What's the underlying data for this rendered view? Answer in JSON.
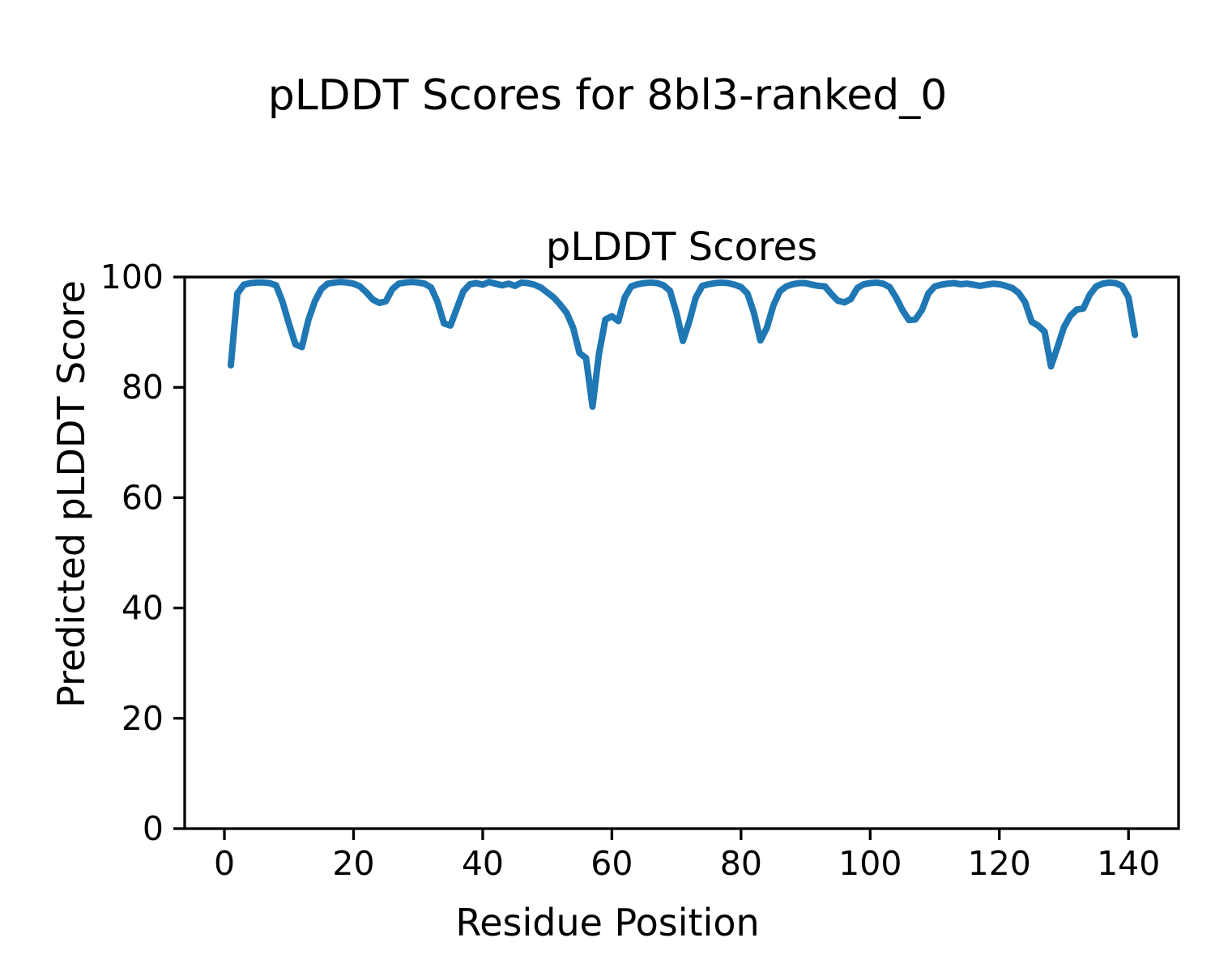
{
  "figure": {
    "title": "pLDDT Scores for 8bl3-ranked_0"
  },
  "chart_data": {
    "type": "line",
    "title": "pLDDT Scores",
    "xlabel": "Residue Position",
    "ylabel": "Predicted pLDDT Score",
    "series_name": "pLDDT",
    "line_color": "#1f77b4",
    "axis_color": "#000000",
    "grid": false,
    "legend": null,
    "xlim": [
      -6.15,
      147.75
    ],
    "ylim": [
      0,
      100
    ],
    "xticks": [
      0,
      20,
      40,
      60,
      80,
      100,
      120,
      140
    ],
    "yticks": [
      0,
      20,
      40,
      60,
      80,
      100
    ],
    "x": [
      1,
      2,
      3,
      4,
      5,
      6,
      7,
      8,
      9,
      10,
      11,
      12,
      13,
      14,
      15,
      16,
      17,
      18,
      19,
      20,
      21,
      22,
      23,
      24,
      25,
      26,
      27,
      28,
      29,
      30,
      31,
      32,
      33,
      34,
      35,
      36,
      37,
      38,
      39,
      40,
      41,
      42,
      43,
      44,
      45,
      46,
      47,
      48,
      49,
      50,
      51,
      52,
      53,
      54,
      55,
      56,
      57,
      58,
      59,
      60,
      61,
      62,
      63,
      64,
      65,
      66,
      67,
      68,
      69,
      70,
      71,
      72,
      73,
      74,
      75,
      76,
      77,
      78,
      79,
      80,
      81,
      82,
      83,
      84,
      85,
      86,
      87,
      88,
      89,
      90,
      91,
      92,
      93,
      94,
      95,
      96,
      97,
      98,
      99,
      100,
      101,
      102,
      103,
      104,
      105,
      106,
      107,
      108,
      109,
      110,
      111,
      112,
      113,
      114,
      115,
      116,
      117,
      118,
      119,
      120,
      121,
      122,
      123,
      124,
      125,
      126,
      127,
      128,
      129,
      130,
      131,
      132,
      133,
      134,
      135,
      136,
      137,
      138,
      139,
      140,
      141
    ],
    "y": [
      84.0,
      97.0,
      98.6,
      98.9,
      99.0,
      99.0,
      98.9,
      98.5,
      95.5,
      91.5,
      87.8,
      87.3,
      92.2,
      95.6,
      97.8,
      98.8,
      99.0,
      99.1,
      99.0,
      98.8,
      98.3,
      97.2,
      95.9,
      95.3,
      95.6,
      97.8,
      98.8,
      99.0,
      99.1,
      99.0,
      98.8,
      98.1,
      95.5,
      91.6,
      91.2,
      94.3,
      97.4,
      98.7,
      98.9,
      98.6,
      99.1,
      98.8,
      98.5,
      98.8,
      98.4,
      99.0,
      98.9,
      98.6,
      98.1,
      97.2,
      96.3,
      95.0,
      93.5,
      90.8,
      86.2,
      85.3,
      76.5,
      86.0,
      92.3,
      92.9,
      92.0,
      96.3,
      98.3,
      98.7,
      98.9,
      99.0,
      98.9,
      98.5,
      97.5,
      93.5,
      88.4,
      92.0,
      96.3,
      98.4,
      98.7,
      98.9,
      99.0,
      98.9,
      98.6,
      98.2,
      97.0,
      93.5,
      88.5,
      90.8,
      94.8,
      97.4,
      98.3,
      98.7,
      98.9,
      98.9,
      98.6,
      98.4,
      98.3,
      96.9,
      95.7,
      95.4,
      96.0,
      98.0,
      98.7,
      98.9,
      99.0,
      98.8,
      98.2,
      96.3,
      94.0,
      92.2,
      92.3,
      94.0,
      97.0,
      98.3,
      98.6,
      98.8,
      98.9,
      98.7,
      98.8,
      98.6,
      98.4,
      98.6,
      98.8,
      98.7,
      98.4,
      98.0,
      97.1,
      95.4,
      91.9,
      91.2,
      90.1,
      83.8,
      87.3,
      90.9,
      93.0,
      94.1,
      94.3,
      96.8,
      98.3,
      98.8,
      99.0,
      98.9,
      98.4,
      96.3,
      89.5
    ]
  }
}
